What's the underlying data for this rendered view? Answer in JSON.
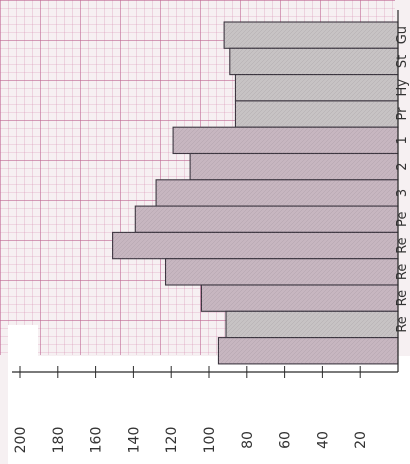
{
  "chart_data": {
    "type": "bar",
    "orientation": "horizontal",
    "value_axis_ticks": [
      200,
      180,
      160,
      140,
      120,
      100,
      80,
      60,
      40,
      20
    ],
    "value_axis_range": [
      0,
      200
    ],
    "grid": true,
    "categories": [
      "Gu",
      "St",
      "Hy",
      "Pr",
      "1",
      "2",
      "3",
      "Pe",
      "Re",
      "Re",
      "Re",
      "Re",
      ""
    ],
    "values": [
      92,
      89,
      86,
      86,
      119,
      110,
      128,
      139,
      151,
      123,
      104,
      91,
      95
    ],
    "colors": {
      "grid": "#c46b96",
      "bar_fill": "#c7b6c0",
      "bar_fill_low": "#c7c3c4",
      "bar_stroke": "#3c3640",
      "axis": "#2a2a2a",
      "text": "#333333",
      "paper": "#ffffff"
    }
  }
}
